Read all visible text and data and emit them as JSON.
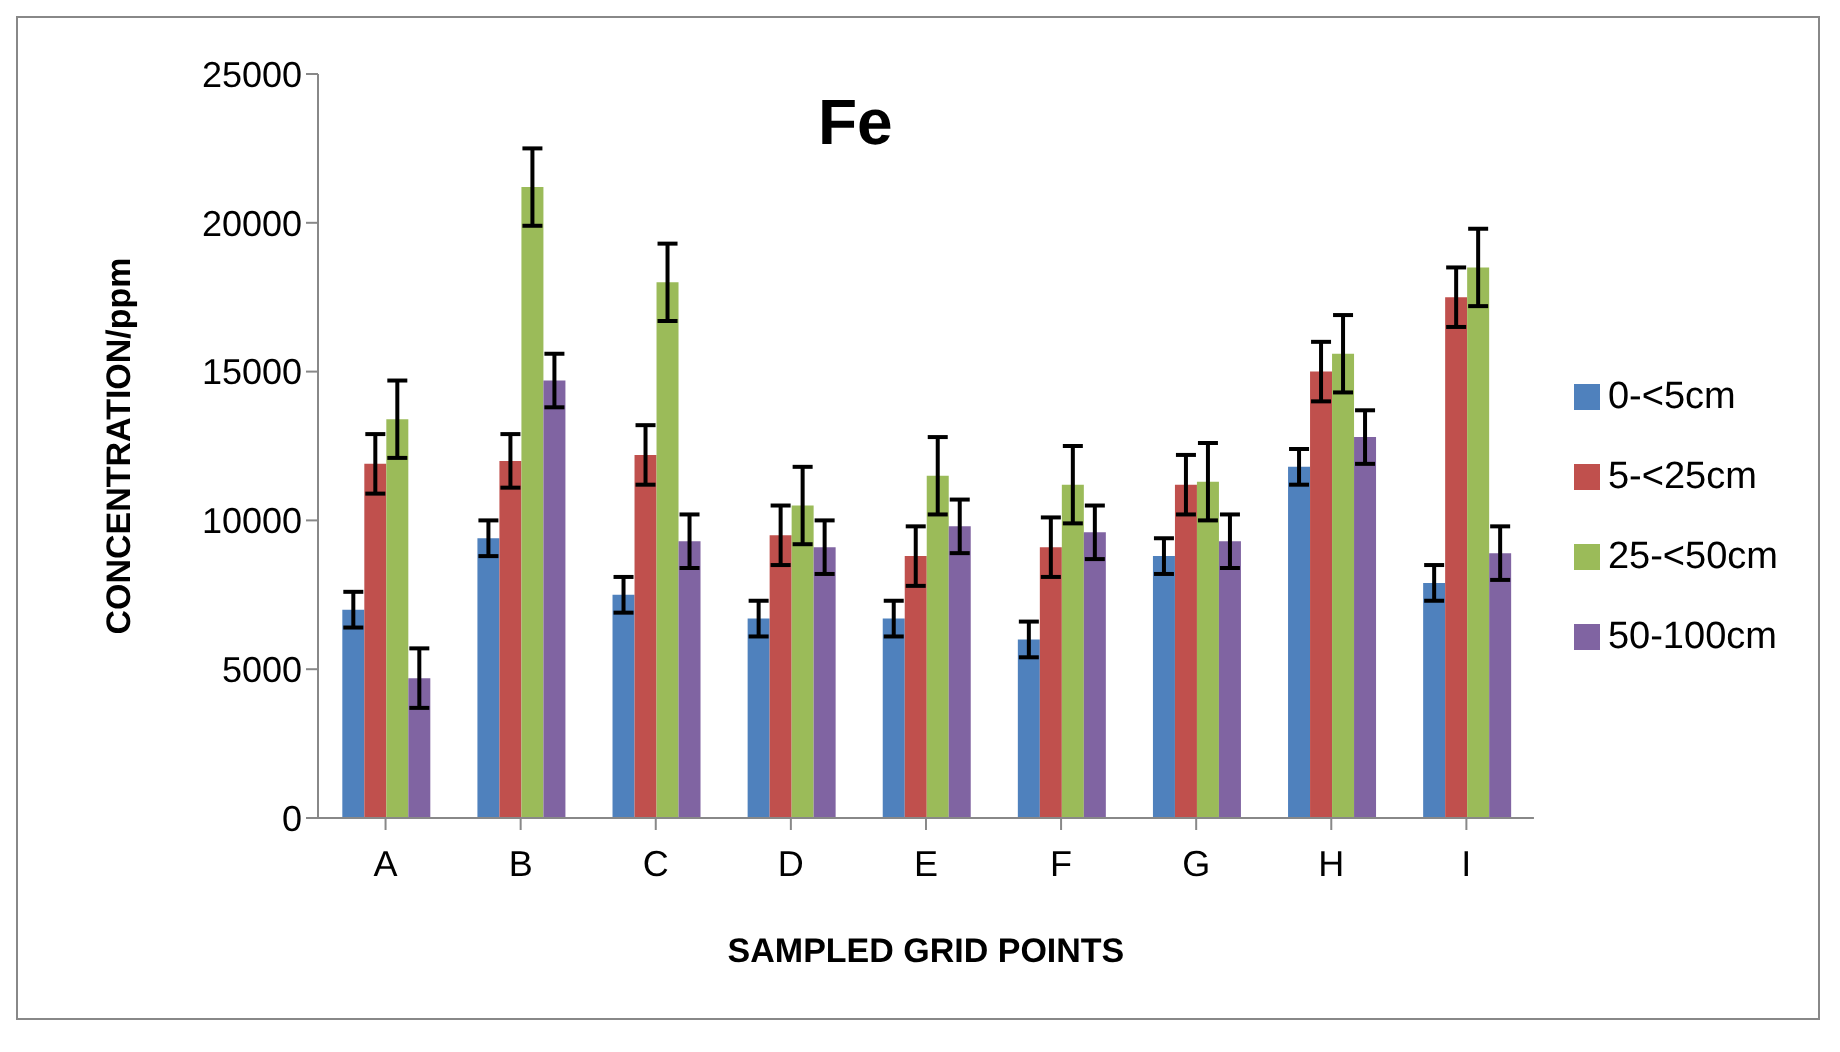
{
  "chart_data": {
    "type": "bar",
    "title": "Fe",
    "xlabel": "SAMPLED GRID POINTS",
    "ylabel": "CONCENTRATION/ppm",
    "categories": [
      "A",
      "B",
      "C",
      "D",
      "E",
      "F",
      "G",
      "H",
      "I"
    ],
    "series": [
      {
        "name": "0-<5cm",
        "color": "#4f81bd",
        "values": [
          7000,
          9400,
          7500,
          6700,
          6700,
          6000,
          8800,
          11800,
          7900
        ],
        "errors": [
          600,
          600,
          600,
          600,
          600,
          600,
          600,
          600,
          600
        ]
      },
      {
        "name": "5-<25cm",
        "color": "#c0504d",
        "values": [
          11900,
          12000,
          12200,
          9500,
          8800,
          9100,
          11200,
          15000,
          17500
        ],
        "errors": [
          1000,
          900,
          1000,
          1000,
          1000,
          1000,
          1000,
          1000,
          1000
        ]
      },
      {
        "name": "25-<50cm",
        "color": "#9bbb59",
        "values": [
          13400,
          21200,
          18000,
          10500,
          11500,
          11200,
          11300,
          15600,
          18500
        ],
        "errors": [
          1300,
          1300,
          1300,
          1300,
          1300,
          1300,
          1300,
          1300,
          1300
        ]
      },
      {
        "name": "50-100cm",
        "color": "#8064a2",
        "values": [
          4700,
          14700,
          9300,
          9100,
          9800,
          9600,
          9300,
          12800,
          8900
        ],
        "errors": [
          1000,
          900,
          900,
          900,
          900,
          900,
          900,
          900,
          900
        ]
      }
    ],
    "ylim": [
      0,
      25000
    ],
    "yticks": [
      0,
      5000,
      10000,
      15000,
      20000,
      25000
    ],
    "legend": "right"
  }
}
